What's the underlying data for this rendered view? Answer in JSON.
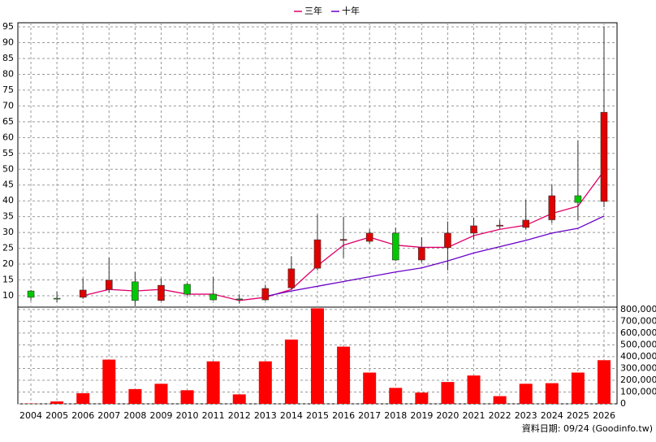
{
  "chart_data": {
    "type": "candlestick",
    "categories": [
      "2004",
      "2005",
      "2006",
      "2007",
      "2008",
      "2009",
      "2010",
      "2011",
      "2012",
      "2013",
      "2014",
      "2015",
      "2016",
      "2017",
      "2018",
      "2019",
      "2020",
      "2021",
      "2022",
      "2023",
      "2024",
      "2025",
      "2026"
    ],
    "open": [
      11.5,
      9.2,
      9.5,
      12,
      14.4,
      8.5,
      13.6,
      10.5,
      9,
      8.7,
      12.5,
      18.7,
      27.5,
      27.2,
      29.8,
      21.3,
      25.2,
      29.8,
      32,
      31.6,
      34,
      41.6,
      39.8
    ],
    "high": [
      11.8,
      11.3,
      15.5,
      22,
      17.5,
      15.5,
      14,
      15.9,
      10.5,
      13.5,
      22.5,
      35.7,
      35,
      31,
      31.5,
      28.5,
      33.5,
      34.7,
      34,
      40.3,
      45.1,
      59,
      95.1
    ],
    "low": [
      8.5,
      8,
      9,
      11,
      6.7,
      8.3,
      10,
      8.5,
      7.5,
      8.4,
      12,
      18,
      22,
      26.5,
      21,
      20.5,
      18,
      27.7,
      31.2,
      31,
      33,
      33.7,
      38
    ],
    "close": [
      9.5,
      9,
      11.8,
      14.9,
      8.5,
      13.3,
      10.5,
      8.7,
      8.8,
      12.3,
      18.5,
      27.7,
      27.8,
      29.8,
      21.3,
      25.2,
      29.8,
      32.1,
      32.3,
      33.9,
      41.6,
      39.5,
      68
    ],
    "up_color": "#e00000",
    "down_color": "#00c800",
    "series": [
      {
        "name": "三年",
        "color": "#e0006a",
        "values": [
          null,
          null,
          10,
          12,
          11.5,
          12,
          10.5,
          10.5,
          8.5,
          9.5,
          12,
          19.5,
          26,
          28.5,
          26,
          25.3,
          25.3,
          29,
          31,
          32.3,
          36,
          38.3,
          49.5
        ]
      },
      {
        "name": "十年",
        "color": "#6a00c8",
        "values": [
          null,
          null,
          null,
          null,
          null,
          null,
          null,
          null,
          null,
          9.8,
          11.5,
          13,
          14.5,
          16,
          17.5,
          18.8,
          21,
          23.5,
          25.5,
          27.5,
          29.8,
          31.3,
          35.2
        ]
      }
    ],
    "ylim": [
      6.4,
      96.3
    ],
    "yticks": [
      10,
      15,
      20,
      25,
      30,
      35,
      40,
      45,
      50,
      55,
      60,
      65,
      70,
      75,
      80,
      85,
      90,
      95
    ],
    "volume": {
      "color": "#ff0000",
      "values": [
        2000,
        20000,
        90000,
        375000,
        125000,
        170000,
        115000,
        360000,
        80000,
        360000,
        545000,
        810000,
        485000,
        265000,
        135000,
        95000,
        185000,
        240000,
        65000,
        170000,
        175000,
        265000,
        370000
      ],
      "ylim": [
        0,
        820000
      ],
      "yticks": [
        {
          "value": 0,
          "label": "0"
        },
        {
          "value": 100000,
          "label": "100,000"
        },
        {
          "value": 200000,
          "label": "200,000"
        },
        {
          "value": 300000,
          "label": "300,000"
        },
        {
          "value": 400000,
          "label": "400,000"
        },
        {
          "value": 500000,
          "label": "500,000"
        },
        {
          "value": 600000,
          "label": "600,000"
        },
        {
          "value": 700000,
          "label": "700,000"
        },
        {
          "value": 800000,
          "label": "800,000"
        }
      ]
    },
    "grid": true,
    "footer": "資料日期: 09/24 (Goodinfo.tw)"
  }
}
